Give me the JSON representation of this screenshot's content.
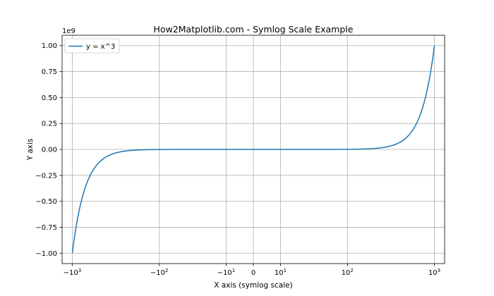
{
  "chart_data": {
    "type": "line",
    "title": "How2Matplotlib.com - Symlog Scale Example",
    "xlabel": "X axis (symlog scale)",
    "ylabel": "Y axis",
    "y_offset_label": "1e9",
    "xscale": "symlog",
    "xlim": [
      -1300,
      1300
    ],
    "ylim": [
      -1.1,
      1.1
    ],
    "grid": true,
    "legend_position": "top-left",
    "series": [
      {
        "name": "y = x^3",
        "color": "#1f77b4",
        "function": "x^3",
        "x_range": [
          -1000,
          1000
        ],
        "y_scale_factor": 1000000000.0
      }
    ],
    "x_ticks": [
      {
        "value": -1000,
        "label_base": "−10",
        "label_exp": "3"
      },
      {
        "value": -100,
        "label_base": "−10",
        "label_exp": "2"
      },
      {
        "value": -10,
        "label_base": "−10",
        "label_exp": "1"
      },
      {
        "value": 0,
        "label_base": "0",
        "label_exp": ""
      },
      {
        "value": 10,
        "label_base": "10",
        "label_exp": "1"
      },
      {
        "value": 100,
        "label_base": "10",
        "label_exp": "2"
      },
      {
        "value": 1000,
        "label_base": "10",
        "label_exp": "3"
      }
    ],
    "y_ticks": [
      {
        "value": 1.0,
        "label": "1.00"
      },
      {
        "value": 0.75,
        "label": "0.75"
      },
      {
        "value": 0.5,
        "label": "0.50"
      },
      {
        "value": 0.25,
        "label": "0.25"
      },
      {
        "value": 0.0,
        "label": "0.00"
      },
      {
        "value": -0.25,
        "label": "−0.25"
      },
      {
        "value": -0.5,
        "label": "−0.50"
      },
      {
        "value": -0.75,
        "label": "−0.75"
      },
      {
        "value": -1.0,
        "label": "−1.00"
      }
    ]
  }
}
